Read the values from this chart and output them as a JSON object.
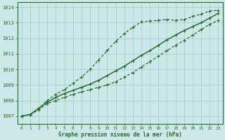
{
  "title": "Graphe pression niveau de la mer (hPa)",
  "background_color": "#cce8e8",
  "grid_color": "#99cccc",
  "line_color": "#2d6b2d",
  "xlim": [
    -0.5,
    23.5
  ],
  "ylim": [
    1006.5,
    1014.3
  ],
  "xticks": [
    0,
    1,
    2,
    3,
    4,
    5,
    6,
    7,
    8,
    9,
    10,
    11,
    12,
    13,
    14,
    15,
    16,
    17,
    18,
    19,
    20,
    21,
    22,
    23
  ],
  "yticks": [
    1007,
    1008,
    1009,
    1010,
    1011,
    1012,
    1013,
    1014
  ],
  "series_upper_dashed": [
    1007.0,
    1007.1,
    1007.5,
    1008.0,
    1008.4,
    1008.7,
    1009.1,
    1009.5,
    1010.0,
    1010.6,
    1011.2,
    1011.8,
    1012.3,
    1012.7,
    1013.05,
    1013.1,
    1013.15,
    1013.2,
    1013.15,
    1013.2,
    1013.4,
    1013.55,
    1013.75,
    1013.8
  ],
  "series_middle_solid": [
    1007.0,
    1007.1,
    1007.5,
    1007.9,
    1008.2,
    1008.45,
    1008.65,
    1008.85,
    1009.05,
    1009.3,
    1009.6,
    1009.9,
    1010.2,
    1010.55,
    1010.9,
    1011.2,
    1011.55,
    1011.9,
    1012.2,
    1012.5,
    1012.75,
    1013.0,
    1013.3,
    1013.6
  ],
  "series_lower_dashed": [
    1007.0,
    1007.1,
    1007.4,
    1007.8,
    1008.0,
    1008.2,
    1008.4,
    1008.55,
    1008.7,
    1008.85,
    1009.0,
    1009.2,
    1009.5,
    1009.8,
    1010.15,
    1010.5,
    1010.85,
    1011.2,
    1011.55,
    1011.85,
    1012.2,
    1012.55,
    1012.9,
    1013.15
  ]
}
